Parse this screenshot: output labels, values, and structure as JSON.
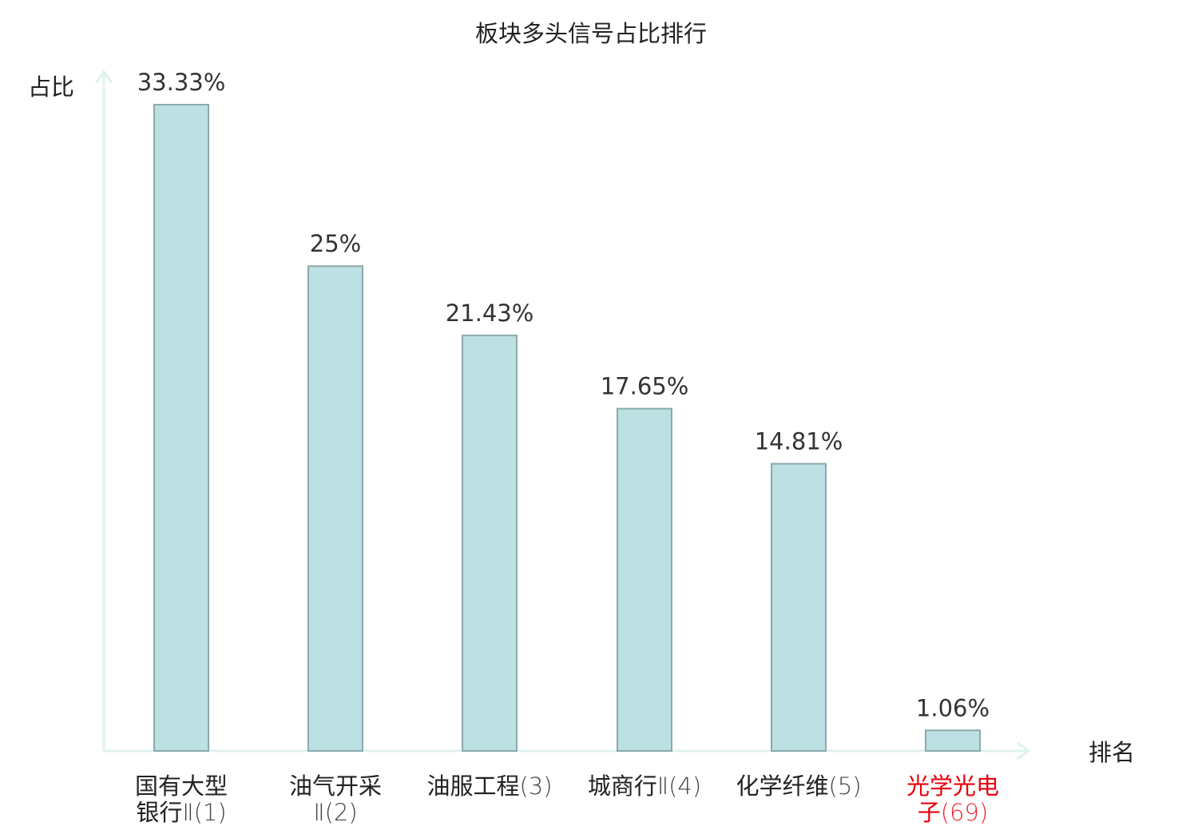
{
  "chart_data": {
    "type": "bar",
    "title": "板块多头信号占比排行",
    "ylabel": "占比",
    "xlabel": "排名",
    "ylim": [
      0,
      35
    ],
    "grid": false,
    "categories": [
      {
        "lines": [
          "国有大型",
          "银行Ⅱ(1)"
        ],
        "highlight": false
      },
      {
        "lines": [
          "油气开采",
          "Ⅱ(2)"
        ],
        "highlight": false
      },
      {
        "lines": [
          "油服工程(3)"
        ],
        "highlight": false
      },
      {
        "lines": [
          "城商行Ⅱ(4)"
        ],
        "highlight": false
      },
      {
        "lines": [
          "化学纤维(5)"
        ],
        "highlight": false
      },
      {
        "lines": [
          "光学光电",
          "子(69)"
        ],
        "highlight": true
      }
    ],
    "values": [
      33.33,
      25,
      21.43,
      17.65,
      14.81,
      1.06
    ],
    "value_labels": [
      "33.33%",
      "25%",
      "21.43%",
      "17.65%",
      "14.81%",
      "1.06%"
    ],
    "colors": {
      "bar_fill": "#bde0e3",
      "bar_stroke": "#8aa9ad",
      "axis": "#e0f2f0",
      "text": "#222222",
      "value_text": "#333333",
      "highlight": "#e8000b"
    }
  }
}
